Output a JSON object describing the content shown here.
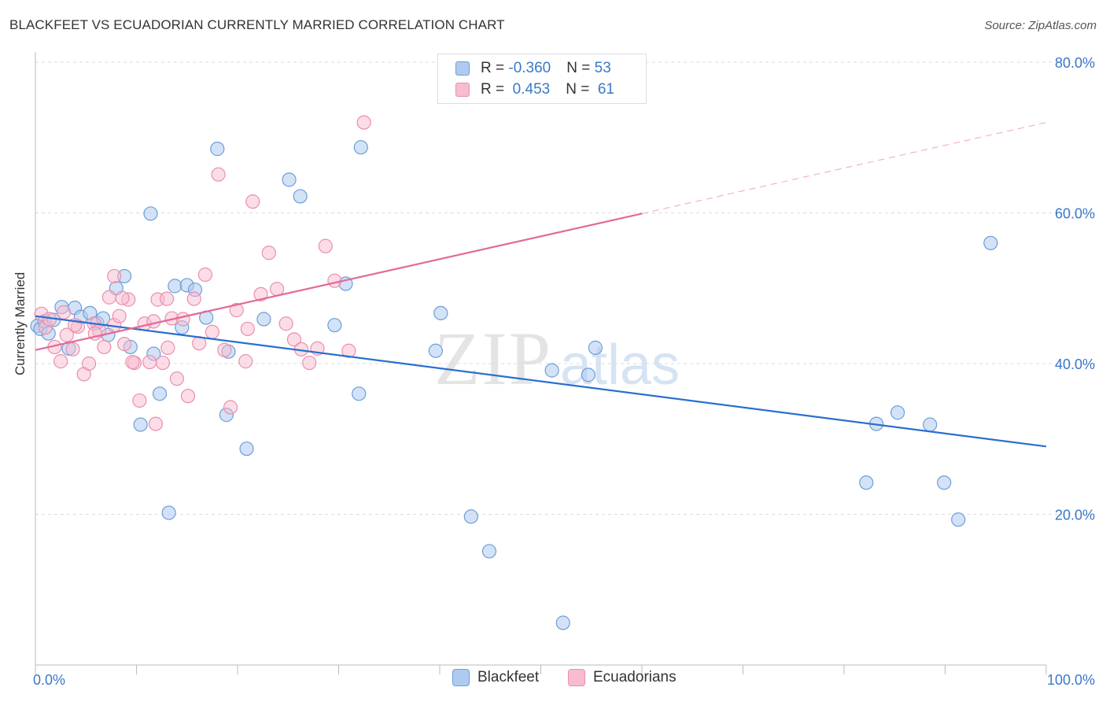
{
  "header": {
    "title": "BLACKFEET VS ECUADORIAN CURRENTLY MARRIED CORRELATION CHART",
    "source": "Source: ZipAtlas.com"
  },
  "legend_top": {
    "rows": [
      {
        "r_label": "R = ",
        "r_value": "-0.360",
        "n_label": "N = ",
        "n_value": "53"
      },
      {
        "r_label": "R = ",
        "r_value": " 0.453",
        "n_label": "N = ",
        "n_value": " 61"
      }
    ]
  },
  "legend_bottom": {
    "items": [
      "Blackfeet",
      "Ecuadorians"
    ]
  },
  "watermark": {
    "zip": "ZIP",
    "atlas": "atlas"
  },
  "colors": {
    "blackfeet_fill": "#aecbef",
    "blackfeet_stroke": "#6b9fd8",
    "blackfeet_line": "#2a6fcf",
    "ecuadorians_fill": "#f7bcd0",
    "ecuadorians_stroke": "#ea8fae",
    "ecuadorians_line": "#e2699a",
    "axis_text": "#3a78c9",
    "grid": "#dddddd"
  },
  "chart_data": {
    "type": "scatter",
    "title": "BLACKFEET VS ECUADORIAN CURRENTLY MARRIED CORRELATION CHART",
    "xlabel": "",
    "ylabel": "Currently Married",
    "xlim": [
      0,
      100
    ],
    "ylim": [
      0,
      80
    ],
    "x_tick_labels": [
      "0.0%",
      "100.0%"
    ],
    "y_ticks": [
      20,
      40,
      60,
      80
    ],
    "y_tick_labels": [
      "20.0%",
      "40.0%",
      "60.0%",
      "80.0%"
    ],
    "grid": true,
    "legend_position": "top-center",
    "series": [
      {
        "name": "Blackfeet",
        "R": -0.36,
        "N": 53,
        "trend": {
          "x": [
            0,
            100
          ],
          "y": [
            46.3,
            29.0
          ]
        },
        "points": [
          [
            0.2,
            45.0
          ],
          [
            0.5,
            44.6
          ],
          [
            0.9,
            45.6
          ],
          [
            1.3,
            44.0
          ],
          [
            1.8,
            45.8
          ],
          [
            2.6,
            47.5
          ],
          [
            3.3,
            42.0
          ],
          [
            3.9,
            47.4
          ],
          [
            4.5,
            46.2
          ],
          [
            5.4,
            46.7
          ],
          [
            6.1,
            45.4
          ],
          [
            6.7,
            46.0
          ],
          [
            7.2,
            43.8
          ],
          [
            8.0,
            50.0
          ],
          [
            8.8,
            51.6
          ],
          [
            9.4,
            42.2
          ],
          [
            10.4,
            31.9
          ],
          [
            11.4,
            59.9
          ],
          [
            11.7,
            41.3
          ],
          [
            12.3,
            36.0
          ],
          [
            13.2,
            20.2
          ],
          [
            13.8,
            50.3
          ],
          [
            14.5,
            44.8
          ],
          [
            15.0,
            50.4
          ],
          [
            15.8,
            49.8
          ],
          [
            16.9,
            46.1
          ],
          [
            18.0,
            68.5
          ],
          [
            18.9,
            33.2
          ],
          [
            19.1,
            41.6
          ],
          [
            20.9,
            28.7
          ],
          [
            22.6,
            45.9
          ],
          [
            25.1,
            64.4
          ],
          [
            26.2,
            62.2
          ],
          [
            29.6,
            45.1
          ],
          [
            30.7,
            50.6
          ],
          [
            32.0,
            36.0
          ],
          [
            32.2,
            68.7
          ],
          [
            39.6,
            41.7
          ],
          [
            40.1,
            46.7
          ],
          [
            43.1,
            19.7
          ],
          [
            44.9,
            15.1
          ],
          [
            49.6,
            75.5
          ],
          [
            51.1,
            39.1
          ],
          [
            52.2,
            5.6
          ],
          [
            54.7,
            38.5
          ],
          [
            55.4,
            42.1
          ],
          [
            82.2,
            24.2
          ],
          [
            83.2,
            32.0
          ],
          [
            85.3,
            33.5
          ],
          [
            88.5,
            31.9
          ],
          [
            89.9,
            24.2
          ],
          [
            91.3,
            19.3
          ],
          [
            94.5,
            56.0
          ]
        ]
      },
      {
        "name": "Ecuadorians",
        "R": 0.453,
        "N": 61,
        "trend": {
          "x": [
            0,
            60
          ],
          "y": [
            41.8,
            59.9
          ]
        },
        "trend_dashed": {
          "x": [
            60,
            100
          ],
          "y": [
            59.9,
            72.0
          ]
        },
        "points": [
          [
            0.6,
            46.6
          ],
          [
            1.0,
            44.8
          ],
          [
            1.4,
            45.9
          ],
          [
            1.9,
            42.2
          ],
          [
            2.5,
            40.3
          ],
          [
            3.1,
            43.8
          ],
          [
            3.7,
            41.9
          ],
          [
            4.2,
            44.9
          ],
          [
            4.8,
            38.6
          ],
          [
            5.3,
            40.0
          ],
          [
            5.8,
            45.3
          ],
          [
            6.3,
            44.4
          ],
          [
            6.8,
            42.2
          ],
          [
            7.3,
            48.8
          ],
          [
            7.8,
            45.1
          ],
          [
            8.3,
            46.3
          ],
          [
            8.8,
            42.6
          ],
          [
            9.2,
            48.5
          ],
          [
            9.8,
            40.1
          ],
          [
            10.3,
            35.1
          ],
          [
            10.8,
            45.3
          ],
          [
            11.3,
            40.2
          ],
          [
            11.7,
            45.6
          ],
          [
            12.1,
            48.5
          ],
          [
            12.6,
            40.1
          ],
          [
            13.1,
            42.1
          ],
          [
            13.5,
            46.0
          ],
          [
            14.0,
            38.0
          ],
          [
            14.6,
            45.9
          ],
          [
            15.1,
            35.7
          ],
          [
            15.7,
            48.6
          ],
          [
            16.2,
            42.7
          ],
          [
            16.8,
            51.8
          ],
          [
            17.5,
            44.2
          ],
          [
            18.1,
            65.1
          ],
          [
            18.7,
            41.8
          ],
          [
            19.3,
            34.2
          ],
          [
            19.9,
            47.1
          ],
          [
            20.8,
            40.3
          ],
          [
            21.5,
            61.5
          ],
          [
            22.3,
            49.2
          ],
          [
            23.1,
            54.7
          ],
          [
            23.9,
            49.9
          ],
          [
            24.8,
            45.3
          ],
          [
            25.6,
            43.2
          ],
          [
            26.3,
            41.9
          ],
          [
            27.1,
            40.1
          ],
          [
            27.9,
            42.0
          ],
          [
            28.7,
            55.6
          ],
          [
            29.6,
            51.0
          ],
          [
            31.0,
            41.7
          ],
          [
            32.5,
            72.0
          ],
          [
            7.8,
            51.6
          ],
          [
            8.6,
            48.7
          ],
          [
            2.8,
            46.8
          ],
          [
            3.9,
            45.1
          ],
          [
            11.9,
            32.0
          ],
          [
            5.9,
            44.0
          ],
          [
            13.0,
            48.6
          ],
          [
            21.0,
            44.6
          ],
          [
            9.6,
            40.2
          ]
        ]
      }
    ]
  }
}
